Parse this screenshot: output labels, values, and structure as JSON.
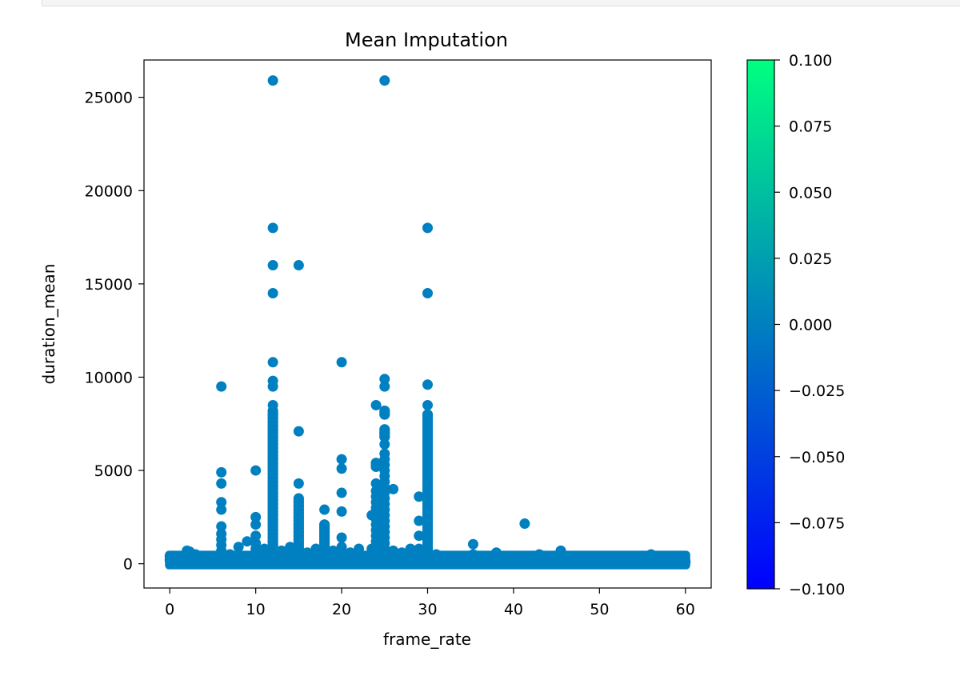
{
  "chart_data": {
    "type": "scatter",
    "title": "Mean Imputation",
    "xlabel": "frame_rate",
    "ylabel": "duration_mean",
    "xlim": [
      -3,
      63
    ],
    "ylim": [
      -1300,
      27000
    ],
    "xticks": [
      0,
      10,
      20,
      30,
      40,
      50,
      60
    ],
    "yticks": [
      0,
      5000,
      10000,
      15000,
      20000,
      25000
    ],
    "xtick_labels": [
      "0",
      "10",
      "20",
      "30",
      "40",
      "50",
      "60"
    ],
    "ytick_labels": [
      "0",
      "5000",
      "10000",
      "15000",
      "20000",
      "25000"
    ],
    "grid": false,
    "point_color": "#0080c0",
    "colorbar": {
      "colormap": "winter",
      "color_low": "#0000ff",
      "color_high": "#00ff80",
      "range": [
        -0.1,
        0.1
      ],
      "ticks": [
        0.1,
        0.075,
        0.05,
        0.025,
        0.0,
        -0.025,
        -0.05,
        -0.075,
        -0.1
      ],
      "tick_labels": [
        "0.100",
        "0.075",
        "0.050",
        "0.025",
        "0.000",
        "−0.025",
        "−0.050",
        "−0.075",
        "−0.100"
      ]
    },
    "columns": [
      {
        "x": 6,
        "ys": [
          9500,
          4900,
          4300,
          3300,
          2900,
          2000,
          1600,
          1300,
          1000,
          700,
          400,
          200,
          0
        ]
      },
      {
        "x": 10,
        "ys": [
          5000,
          2500,
          2100,
          1500,
          1100,
          800,
          400,
          100
        ]
      },
      {
        "x": 12,
        "ys": [
          25900,
          18000,
          16000,
          14500,
          10800,
          9800,
          9500,
          8500,
          8200,
          8000,
          7800,
          7600,
          7400,
          7200,
          7000,
          6800,
          6600,
          6400,
          6200,
          6000,
          5800,
          5600,
          5400,
          5200,
          5000,
          4800,
          4600,
          4400,
          4200,
          4000,
          3800,
          3600,
          3400,
          3200,
          3000,
          2800,
          2600,
          2400,
          2200,
          2000,
          1800,
          1600,
          1400,
          1200,
          1000,
          800,
          600,
          400,
          200,
          0
        ]
      },
      {
        "x": 15,
        "ys": [
          16000,
          7100,
          4300,
          3500,
          3300,
          3100,
          2900,
          2700,
          2500,
          2300,
          2100,
          1900,
          1700,
          1500,
          1300,
          1100,
          900,
          700,
          500,
          300,
          100
        ]
      },
      {
        "x": 18,
        "ys": [
          2900,
          2100,
          1900,
          1700,
          1500,
          1300,
          1100,
          900,
          700,
          500,
          300,
          100
        ]
      },
      {
        "x": 20,
        "ys": [
          10800,
          5600,
          5100,
          3800,
          2800,
          1400,
          900,
          600,
          300,
          100
        ]
      },
      {
        "x": 23.5,
        "ys": [
          2600,
          800,
          400,
          100
        ]
      },
      {
        "x": 24,
        "ys": [
          8500,
          5400,
          5200,
          4300,
          3900,
          3600,
          3300,
          3000,
          2700,
          2400,
          2100,
          1800,
          1500,
          1200,
          900,
          600,
          300,
          100
        ]
      },
      {
        "x": 25,
        "ys": [
          25900,
          9900,
          9500,
          8200,
          8000,
          7200,
          7000,
          6800,
          6400,
          5900,
          5600,
          5300,
          5000,
          4700,
          4400,
          4100,
          3800,
          3500,
          3200,
          2900,
          2600,
          2300,
          2000,
          1700,
          1400,
          1100,
          800,
          500,
          200
        ]
      },
      {
        "x": 26,
        "ys": [
          4000,
          700,
          300,
          100
        ]
      },
      {
        "x": 29,
        "ys": [
          3600,
          2300,
          1500,
          800,
          300
        ]
      },
      {
        "x": 30,
        "ys": [
          18000,
          14500,
          9600,
          8500,
          8000,
          7800,
          7600,
          7400,
          7200,
          7000,
          6800,
          6600,
          6400,
          6200,
          6000,
          5800,
          5600,
          5400,
          5200,
          5000,
          4800,
          4600,
          4400,
          4200,
          4000,
          3800,
          3600,
          3400,
          3200,
          3000,
          2800,
          2600,
          2400,
          2200,
          2000,
          1800,
          1600,
          1400,
          1200,
          1000,
          800,
          600,
          400,
          200,
          0
        ]
      },
      {
        "x": 35.3,
        "ys": [
          1050,
          500
        ]
      },
      {
        "x": 41.3,
        "ys": [
          2150
        ]
      },
      {
        "x": 45.5,
        "ys": [
          700
        ]
      },
      {
        "x": 56,
        "ys": [
          500
        ]
      }
    ],
    "scattered_points": [
      {
        "x": 0,
        "y": 400
      },
      {
        "x": 0,
        "y": 200
      },
      {
        "x": 1,
        "y": 300
      },
      {
        "x": 2,
        "y": 700
      },
      {
        "x": 2.3,
        "y": 650
      },
      {
        "x": 3,
        "y": 500
      },
      {
        "x": 4,
        "y": 400
      },
      {
        "x": 5,
        "y": 300
      },
      {
        "x": 7,
        "y": 500
      },
      {
        "x": 8,
        "y": 900
      },
      {
        "x": 9,
        "y": 1200
      },
      {
        "x": 11,
        "y": 800
      },
      {
        "x": 13,
        "y": 700
      },
      {
        "x": 14,
        "y": 900
      },
      {
        "x": 16,
        "y": 600
      },
      {
        "x": 17,
        "y": 800
      },
      {
        "x": 19,
        "y": 700
      },
      {
        "x": 21,
        "y": 600
      },
      {
        "x": 22,
        "y": 800
      },
      {
        "x": 27,
        "y": 600
      },
      {
        "x": 28,
        "y": 800
      },
      {
        "x": 31,
        "y": 500
      },
      {
        "x": 32,
        "y": 300
      },
      {
        "x": 33,
        "y": 400
      },
      {
        "x": 34,
        "y": 200
      },
      {
        "x": 36,
        "y": 400
      },
      {
        "x": 37,
        "y": 300
      },
      {
        "x": 38,
        "y": 600
      },
      {
        "x": 39,
        "y": 400
      },
      {
        "x": 40,
        "y": 300
      },
      {
        "x": 42,
        "y": 400
      },
      {
        "x": 43,
        "y": 500
      },
      {
        "x": 44,
        "y": 300
      },
      {
        "x": 46,
        "y": 400
      },
      {
        "x": 47,
        "y": 300
      },
      {
        "x": 48,
        "y": 400
      },
      {
        "x": 49,
        "y": 300
      },
      {
        "x": 50,
        "y": 400
      },
      {
        "x": 51,
        "y": 300
      },
      {
        "x": 52,
        "y": 400
      },
      {
        "x": 53,
        "y": 300
      },
      {
        "x": 54,
        "y": 200
      },
      {
        "x": 55,
        "y": 300
      },
      {
        "x": 57,
        "y": 200
      },
      {
        "x": 58,
        "y": 100
      },
      {
        "x": 59,
        "y": 300
      },
      {
        "x": 59.7,
        "y": 350
      },
      {
        "x": 60,
        "y": 100
      }
    ],
    "baseline_band": {
      "x_range": [
        0,
        60
      ],
      "y_range": [
        0,
        700
      ]
    }
  }
}
